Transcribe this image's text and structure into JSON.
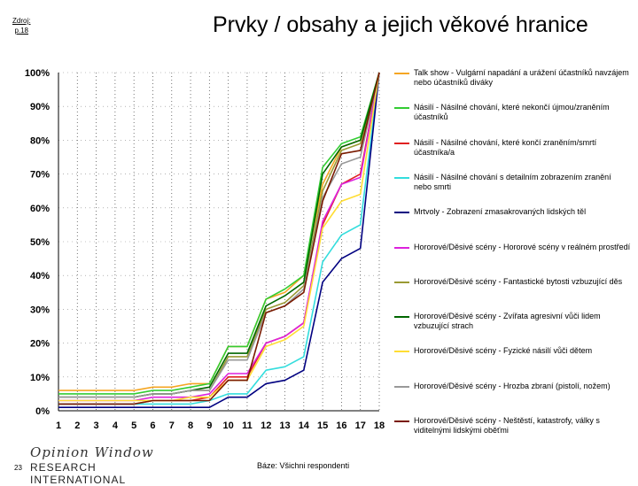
{
  "header": {
    "source_line1": "Zdroj:",
    "source_line2": "p.18",
    "title": "Prvky / obsahy a jejich věkové hranice"
  },
  "footer": {
    "page_number": "23",
    "logo_line1": "Opinion Window",
    "logo_line2": "RESEARCH INTERNATIONAL",
    "base_note": "Báze: Všichni respondenti"
  },
  "chart_data": {
    "type": "line",
    "title": "Prvky / obsahy a jejich věkové hranice",
    "xlabel": "",
    "ylabel": "",
    "x": [
      1,
      2,
      3,
      4,
      5,
      6,
      7,
      8,
      9,
      10,
      11,
      12,
      13,
      14,
      15,
      16,
      17,
      18
    ],
    "x_tick_labels": [
      "1",
      "2",
      "3",
      "4",
      "5",
      "6",
      "7",
      "8",
      "9",
      "10",
      "11",
      "12",
      "13",
      "14",
      "15",
      "16",
      "17",
      "18"
    ],
    "ylim": [
      0,
      100
    ],
    "y_tick_labels": [
      "0%",
      "10%",
      "20%",
      "30%",
      "40%",
      "50%",
      "60%",
      "70%",
      "80%",
      "90%",
      "100%"
    ],
    "grid": "dotted vertical",
    "legend_position": "right",
    "series": [
      {
        "name": "Talk show - Vulgární napadání a urážení účastníků navzájem nebo účastníků diváky",
        "color": "#f5a623",
        "values": [
          6,
          6,
          6,
          6,
          6,
          7,
          7,
          8,
          8,
          19,
          19,
          33,
          35,
          40,
          67,
          78,
          80,
          100
        ]
      },
      {
        "name": "Násilí - Násilné chování, které nekončí újmou/zraněním účastníků",
        "color": "#33cc33",
        "values": [
          5,
          5,
          5,
          5,
          5,
          6,
          6,
          7,
          8,
          19,
          19,
          33,
          36,
          40,
          72,
          79,
          81,
          100
        ]
      },
      {
        "name": "Násilí - Násilné chování, které končí zraněním/smrtí účastníka/a",
        "color": "#e02020",
        "values": [
          2,
          2,
          2,
          2,
          2,
          3,
          3,
          3,
          4,
          10,
          10,
          20,
          22,
          26,
          55,
          67,
          70,
          100
        ]
      },
      {
        "name": "Násilí - Násilné chování s detailním zobrazením zranění nebo smrti",
        "color": "#33dddd",
        "values": [
          2,
          2,
          2,
          2,
          2,
          2,
          2,
          2,
          3,
          5,
          5,
          12,
          13,
          16,
          44,
          52,
          55,
          100
        ]
      },
      {
        "name": "Mrtvoly - Zobrazení zmasakrovaných lidských těl",
        "color": "#000080",
        "values": [
          1,
          1,
          1,
          1,
          1,
          1,
          1,
          1,
          1,
          4,
          4,
          8,
          9,
          12,
          38,
          45,
          48,
          100
        ]
      },
      {
        "name": "Hororové/Děsivé scény - Hororové scény v reálném prostředí",
        "color": "#dd22dd",
        "values": [
          3,
          3,
          3,
          3,
          3,
          4,
          4,
          4,
          5,
          11,
          11,
          20,
          22,
          26,
          56,
          67,
          69,
          100
        ]
      },
      {
        "name": "Hororové/Děsivé scény - Fantastické bytosti vzbuzující děs",
        "color": "#999933",
        "values": [
          4,
          4,
          4,
          4,
          4,
          5,
          5,
          6,
          6,
          16,
          16,
          30,
          32,
          37,
          65,
          77,
          79,
          100
        ]
      },
      {
        "name": "Hororové/Děsivé scény - Zvířata agresivní vůči lidem vzbuzující strach",
        "color": "#006600",
        "values": [
          4,
          4,
          4,
          4,
          4,
          5,
          5,
          6,
          7,
          17,
          17,
          31,
          34,
          38,
          70,
          78,
          80,
          100
        ]
      },
      {
        "name": "Hororové/Děsivé scény - Fyzické násilí vůči dětem",
        "color": "#ffdd33",
        "values": [
          3,
          3,
          3,
          3,
          3,
          3,
          3,
          4,
          4,
          9,
          9,
          19,
          21,
          25,
          54,
          62,
          64,
          100
        ]
      },
      {
        "name": "Hororové/Děsivé scény - Hrozba zbraní (pistolí, nožem)",
        "color": "#999999",
        "values": [
          4,
          4,
          4,
          4,
          4,
          5,
          5,
          6,
          6,
          15,
          15,
          29,
          31,
          36,
          63,
          73,
          75,
          100
        ]
      },
      {
        "name": "Hororové/Děsivé scény - Neštěstí, katastrofy, války s viditelnými lidskými oběťmi",
        "color": "#7a1a00",
        "values": [
          2,
          2,
          2,
          2,
          2,
          3,
          3,
          3,
          3,
          9,
          9,
          29,
          31,
          35,
          62,
          76,
          77,
          100
        ]
      }
    ]
  }
}
